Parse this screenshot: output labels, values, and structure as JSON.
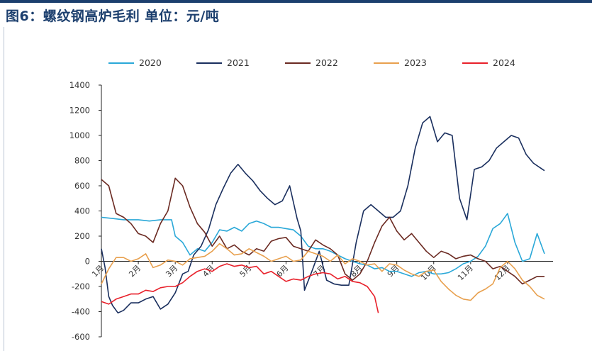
{
  "title": "图6：螺纹钢高炉毛利  单位：元/吨",
  "chart_data": {
    "type": "line",
    "title": "图6：螺纹钢高炉毛利  单位：元/吨",
    "ylabel": "",
    "xlabel": "",
    "ylim": [
      -600,
      1400
    ],
    "yticks": [
      "1400",
      "1200",
      "1000",
      "800",
      "600",
      "400",
      "200",
      "0",
      "-200",
      "-400",
      "-600"
    ],
    "xlim": [
      0,
      12
    ],
    "xticks": [
      "1月",
      "2月",
      "3月",
      "4月",
      "5月",
      "6月",
      "7月",
      "8月",
      "9月",
      "10月",
      "11月",
      "12月"
    ],
    "grid": false,
    "legend_position": "top",
    "series": [
      {
        "name": "2020",
        "color": "#2aa8d8",
        "x": [
          0.0,
          0.3,
          0.6,
          1.0,
          1.3,
          1.6,
          1.9,
          2.0,
          2.2,
          2.4,
          2.6,
          2.8,
          3.0,
          3.2,
          3.4,
          3.6,
          3.8,
          4.0,
          4.2,
          4.4,
          4.6,
          4.8,
          5.0,
          5.2,
          5.4,
          5.6,
          5.8,
          6.0,
          6.2,
          6.4,
          6.6,
          6.8,
          7.0,
          7.2,
          7.4,
          7.6,
          7.8,
          8.0,
          8.2,
          8.4,
          8.6,
          8.8,
          9.0,
          9.2,
          9.4,
          9.6,
          9.8,
          10.0,
          10.2,
          10.4,
          10.6,
          10.8,
          11.0,
          11.2,
          11.4,
          11.6,
          11.8,
          12.0
        ],
        "y": [
          350,
          340,
          330,
          330,
          320,
          330,
          330,
          200,
          150,
          50,
          100,
          80,
          150,
          250,
          240,
          270,
          240,
          300,
          320,
          300,
          270,
          270,
          260,
          250,
          200,
          120,
          100,
          100,
          80,
          50,
          20,
          0,
          -20,
          -30,
          -60,
          -50,
          -80,
          -80,
          -100,
          -120,
          -90,
          -80,
          -100,
          -100,
          -90,
          -60,
          -20,
          0,
          40,
          120,
          260,
          300,
          380,
          150,
          0,
          20,
          220,
          60
        ]
      },
      {
        "name": "2021",
        "color": "#1a2f5e",
        "x": [
          0.0,
          0.1,
          0.2,
          0.3,
          0.45,
          0.6,
          0.8,
          1.0,
          1.2,
          1.4,
          1.6,
          1.8,
          2.0,
          2.2,
          2.35,
          2.5,
          2.7,
          2.9,
          3.1,
          3.3,
          3.5,
          3.7,
          3.9,
          4.1,
          4.3,
          4.5,
          4.7,
          4.9,
          5.1,
          5.3,
          5.4,
          5.5,
          5.7,
          5.9,
          6.1,
          6.3,
          6.5,
          6.7,
          6.9,
          7.1,
          7.3,
          7.5,
          7.7,
          7.9,
          8.1,
          8.3,
          8.5,
          8.7,
          8.9,
          9.1,
          9.3,
          9.5,
          9.7,
          9.9,
          10.1,
          10.3,
          10.5,
          10.7,
          10.9,
          11.1,
          11.3,
          11.5,
          11.7,
          11.9,
          12.0
        ],
        "y": [
          100,
          -50,
          -280,
          -350,
          -410,
          -390,
          -330,
          -330,
          -300,
          -280,
          -380,
          -340,
          -250,
          -100,
          -80,
          50,
          120,
          250,
          450,
          580,
          700,
          770,
          700,
          640,
          560,
          500,
          450,
          480,
          600,
          340,
          240,
          -230,
          -80,
          80,
          -150,
          -180,
          -190,
          -190,
          150,
          400,
          450,
          400,
          350,
          350,
          400,
          600,
          900,
          1100,
          1150,
          950,
          1020,
          1000,
          500,
          330,
          730,
          750,
          800,
          900,
          950,
          1000,
          980,
          850,
          780,
          740,
          720
        ]
      },
      {
        "name": "2022",
        "color": "#6b2a22",
        "x": [
          0.0,
          0.2,
          0.4,
          0.6,
          0.8,
          1.0,
          1.2,
          1.4,
          1.6,
          1.8,
          2.0,
          2.2,
          2.4,
          2.6,
          2.8,
          3.0,
          3.2,
          3.4,
          3.6,
          3.8,
          4.0,
          4.2,
          4.4,
          4.6,
          4.8,
          5.0,
          5.2,
          5.4,
          5.6,
          5.8,
          6.0,
          6.2,
          6.4,
          6.6,
          6.8,
          7.0,
          7.2,
          7.4,
          7.6,
          7.8,
          8.0,
          8.2,
          8.4,
          8.6,
          8.8,
          9.0,
          9.2,
          9.4,
          9.6,
          9.8,
          10.0,
          10.2,
          10.4,
          10.6,
          10.8,
          11.0,
          11.2,
          11.4,
          11.6,
          11.8,
          12.0
        ],
        "y": [
          650,
          600,
          380,
          350,
          300,
          220,
          200,
          150,
          300,
          400,
          660,
          600,
          430,
          300,
          230,
          120,
          200,
          100,
          130,
          80,
          50,
          100,
          80,
          160,
          180,
          190,
          120,
          100,
          80,
          170,
          130,
          100,
          50,
          -100,
          -150,
          -100,
          0,
          150,
          280,
          350,
          240,
          170,
          220,
          150,
          80,
          30,
          80,
          60,
          20,
          40,
          50,
          20,
          0,
          -60,
          -40,
          -80,
          -120,
          -180,
          -150,
          -120,
          -120
        ]
      },
      {
        "name": "2023",
        "color": "#e8a04e",
        "x": [
          0.0,
          0.2,
          0.4,
          0.6,
          0.8,
          1.0,
          1.2,
          1.4,
          1.6,
          1.8,
          2.0,
          2.2,
          2.4,
          2.6,
          2.8,
          3.0,
          3.2,
          3.4,
          3.6,
          3.8,
          4.0,
          4.2,
          4.4,
          4.6,
          4.8,
          5.0,
          5.2,
          5.4,
          5.6,
          5.8,
          6.0,
          6.2,
          6.4,
          6.6,
          6.8,
          7.0,
          7.2,
          7.4,
          7.6,
          7.8,
          8.0,
          8.2,
          8.4,
          8.6,
          8.8,
          9.0,
          9.2,
          9.4,
          9.6,
          9.8,
          10.0,
          10.2,
          10.4,
          10.6,
          10.8,
          11.0,
          11.2,
          11.4,
          11.6,
          11.8,
          12.0
        ],
        "y": [
          -180,
          -60,
          30,
          30,
          0,
          20,
          60,
          -50,
          -30,
          10,
          0,
          -30,
          20,
          30,
          40,
          80,
          140,
          100,
          50,
          60,
          100,
          70,
          40,
          0,
          20,
          40,
          0,
          10,
          80,
          60,
          40,
          0,
          50,
          -20,
          20,
          0,
          -30,
          -20,
          -80,
          -20,
          -30,
          -70,
          -100,
          -120,
          -80,
          -70,
          -160,
          -220,
          -270,
          -300,
          -310,
          -250,
          -220,
          -180,
          -50,
          0,
          -60,
          -150,
          -200,
          -270,
          -300
        ]
      },
      {
        "name": "2024",
        "color": "#e8202a",
        "x": [
          0.0,
          0.2,
          0.4,
          0.6,
          0.8,
          1.0,
          1.2,
          1.4,
          1.6,
          1.8,
          2.0,
          2.2,
          2.4,
          2.6,
          2.8,
          3.0,
          3.2,
          3.4,
          3.6,
          3.8,
          4.0,
          4.2,
          4.4,
          4.6,
          4.8,
          5.0,
          5.2,
          5.4,
          5.6,
          5.8,
          6.0,
          6.2,
          6.4,
          6.6,
          6.8,
          7.0,
          7.2,
          7.4,
          7.5
        ],
        "y": [
          -320,
          -340,
          -300,
          -280,
          -260,
          -260,
          -230,
          -240,
          -210,
          -200,
          -200,
          -170,
          -120,
          -80,
          -60,
          -80,
          -40,
          -20,
          -40,
          -30,
          -50,
          -40,
          -100,
          -80,
          -120,
          -160,
          -140,
          -150,
          -120,
          -100,
          -90,
          -100,
          -140,
          -120,
          -160,
          -170,
          -200,
          -280,
          -410
        ]
      }
    ]
  }
}
